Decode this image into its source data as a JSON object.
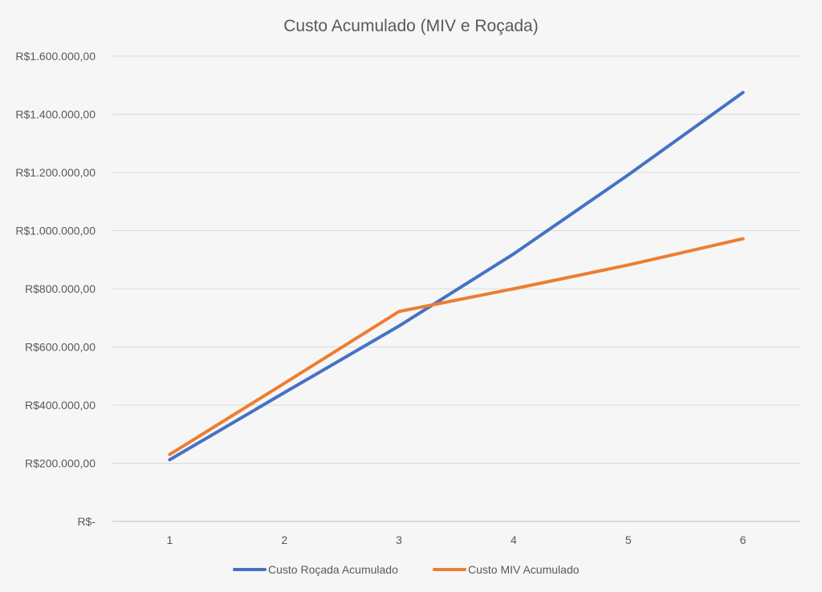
{
  "chart_data": {
    "type": "line",
    "title": "Custo Acumulado (MIV e Roçada)",
    "xlabel": "",
    "ylabel": "",
    "categories": [
      "1",
      "2",
      "3",
      "4",
      "5",
      "6"
    ],
    "ylim": [
      0,
      1600000
    ],
    "y_tick_labels": [
      "R$-",
      "R$200.000,00",
      "R$400.000,00",
      "R$600.000,00",
      "R$800.000,00",
      "R$1.000.000,00",
      "R$1.200.000,00",
      "R$1.400.000,00",
      "R$1.600.000,00"
    ],
    "y_tick_values": [
      0,
      200000,
      400000,
      600000,
      800000,
      1000000,
      1200000,
      1400000,
      1600000
    ],
    "grid": true,
    "legend_position": "bottom",
    "series": [
      {
        "name": "Custo Roçada Acumulado",
        "color": "#4472c4",
        "values": [
          212000,
          443000,
          672000,
          920000,
          1192000,
          1475000
        ]
      },
      {
        "name": "Custo MIV Acumulado",
        "color": "#ed7d31",
        "values": [
          230000,
          475000,
          722000,
          800000,
          882000,
          972000
        ]
      }
    ]
  }
}
